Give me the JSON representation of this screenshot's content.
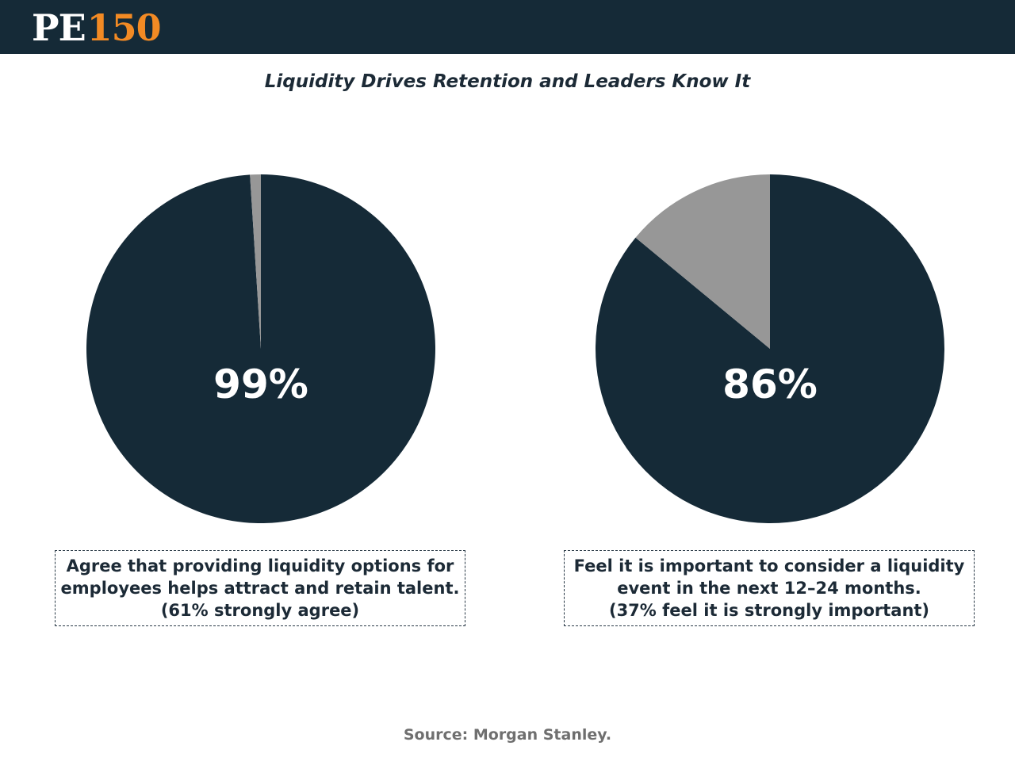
{
  "header": {
    "logo_pe": "PE",
    "logo_number": "150"
  },
  "colors": {
    "header_bg": "#152a37",
    "logo_accent": "#f28a24",
    "primary_slice": "#152a37",
    "secondary_slice": "#979797"
  },
  "chart_data": [
    {
      "type": "pie",
      "title": "Liquidity Drives Retention and Leaders Know It",
      "values": [
        99,
        1
      ],
      "colors": [
        "#152a37",
        "#979797"
      ],
      "center_label": "99%",
      "caption": [
        "Agree that providing liquidity options for",
        "employees helps attract and retain talent.",
        "(61% strongly agree)"
      ]
    },
    {
      "type": "pie",
      "title": "Liquidity Drives Retention and Leaders Know It",
      "values": [
        86,
        14
      ],
      "colors": [
        "#152a37",
        "#979797"
      ],
      "center_label": "86%",
      "caption": [
        "Feel it is important to consider a liquidity",
        "event in the next 12–24 months.",
        "(37% feel it is strongly important)"
      ]
    }
  ],
  "source": "Source: Morgan Stanley."
}
